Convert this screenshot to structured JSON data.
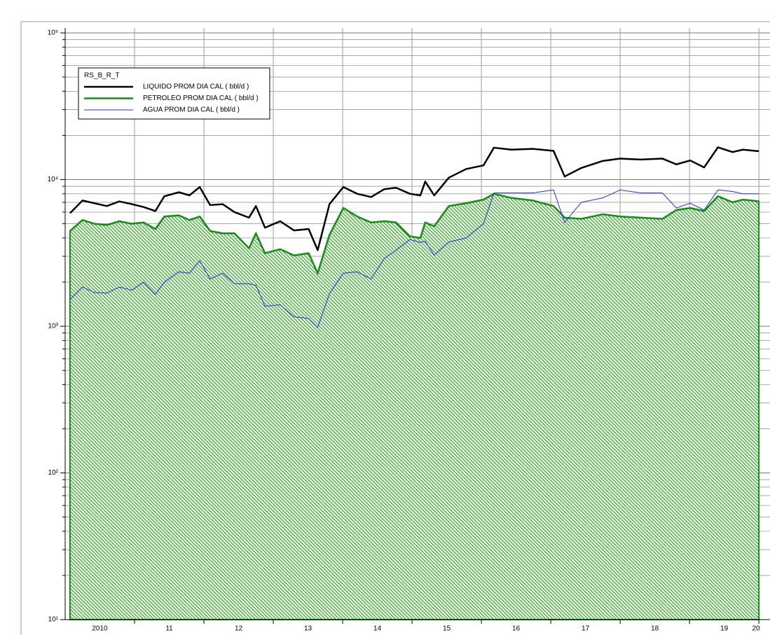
{
  "chart_data": {
    "type": "line",
    "legend_title": "RS_B_R_T",
    "log_y": true,
    "grid": true,
    "fill_series": 1,
    "x": [
      2010.07,
      2010.25,
      2010.42,
      2010.6,
      2010.78,
      2010.96,
      2011.13,
      2011.3,
      2011.43,
      2011.64,
      2011.79,
      2011.94,
      2012.09,
      2012.27,
      2012.44,
      2012.65,
      2012.75,
      2012.88,
      2013.1,
      2013.3,
      2013.51,
      2013.64,
      2013.81,
      2014.01,
      2014.21,
      2014.41,
      2014.6,
      2014.77,
      2014.97,
      2015.12,
      2015.19,
      2015.32,
      2015.53,
      2015.78,
      2016.03,
      2016.18,
      2016.43,
      2016.74,
      2017.04,
      2017.2,
      2017.44,
      2017.75,
      2018.0,
      2018.3,
      2018.61,
      2018.81,
      2019.01,
      2019.21,
      2019.41,
      2019.62,
      2019.77,
      2020.0
    ],
    "series": [
      {
        "name": "LIQUIDO PROM DIA CAL ( bbl/d )",
        "color": "#000000",
        "width": 2.5,
        "values": [
          5900,
          7200,
          6900,
          6600,
          7100,
          6800,
          6500,
          6100,
          7700,
          8200,
          7800,
          8900,
          6700,
          6800,
          6000,
          5500,
          6600,
          4700,
          5200,
          4500,
          4600,
          3300,
          6800,
          8900,
          8000,
          7600,
          8600,
          8800,
          8000,
          7800,
          9700,
          7800,
          10300,
          11800,
          12500,
          16500,
          16000,
          16200,
          15700,
          10500,
          12000,
          13400,
          13900,
          13700,
          13900,
          12700,
          13500,
          12100,
          16600,
          15400,
          16000,
          15600
        ]
      },
      {
        "name": "PETROLEO PROM DIA CAL ( bbl/d )",
        "color": "#1a8a1a",
        "width": 2.5,
        "values": [
          4460,
          5300,
          5000,
          4900,
          5200,
          5000,
          5100,
          4600,
          5600,
          5700,
          5300,
          5600,
          4460,
          4300,
          4300,
          3400,
          4300,
          3150,
          3350,
          3040,
          3150,
          2300,
          4200,
          6400,
          5600,
          5100,
          5200,
          5100,
          4100,
          4000,
          5100,
          4800,
          6600,
          6900,
          7300,
          8000,
          7500,
          7200,
          6600,
          5500,
          5400,
          5800,
          5600,
          5500,
          5400,
          6200,
          6400,
          6100,
          7700,
          7000,
          7300,
          7100
        ]
      },
      {
        "name": "AGUA  PROM DIA CAL ( bbl/d )",
        "color": "#2233cc",
        "width": 1,
        "values": [
          1520,
          1850,
          1700,
          1680,
          1850,
          1760,
          2000,
          1650,
          2000,
          2350,
          2300,
          2800,
          2100,
          2300,
          1950,
          1950,
          1900,
          1370,
          1400,
          1160,
          1130,
          980,
          1670,
          2300,
          2350,
          2100,
          2900,
          3300,
          3900,
          3730,
          3800,
          3050,
          3750,
          4000,
          5000,
          8100,
          8100,
          8100,
          8500,
          5100,
          7000,
          7500,
          8500,
          8100,
          8100,
          6400,
          6900,
          6200,
          8500,
          8300,
          8000,
          8000
        ]
      }
    ],
    "xlim": [
      2010,
      2020.16
    ],
    "xticks": [
      {
        "value": 2010.5,
        "label": "2010"
      },
      {
        "value": 2011.5,
        "label": "11"
      },
      {
        "value": 2012.5,
        "label": "12"
      },
      {
        "value": 2013.5,
        "label": "13"
      },
      {
        "value": 2014.5,
        "label": "14"
      },
      {
        "value": 2015.5,
        "label": "15"
      },
      {
        "value": 2016.5,
        "label": "16"
      },
      {
        "value": 2017.5,
        "label": "17"
      },
      {
        "value": 2018.5,
        "label": "18"
      },
      {
        "value": 2019.5,
        "label": "19"
      },
      {
        "value": 2020.5,
        "label": "20"
      }
    ],
    "xgrid": [
      2011,
      2012,
      2013,
      2014,
      2015,
      2016,
      2017,
      2018,
      2019,
      2020
    ],
    "ylim": [
      10,
      100000
    ],
    "yticks": [
      {
        "value": 10,
        "label": "10¹"
      },
      {
        "value": 100,
        "label": "10²"
      },
      {
        "value": 1000,
        "label": "10³"
      },
      {
        "value": 10000,
        "label": "10⁴"
      },
      {
        "value": 100000,
        "label": "10⁵"
      }
    ]
  }
}
